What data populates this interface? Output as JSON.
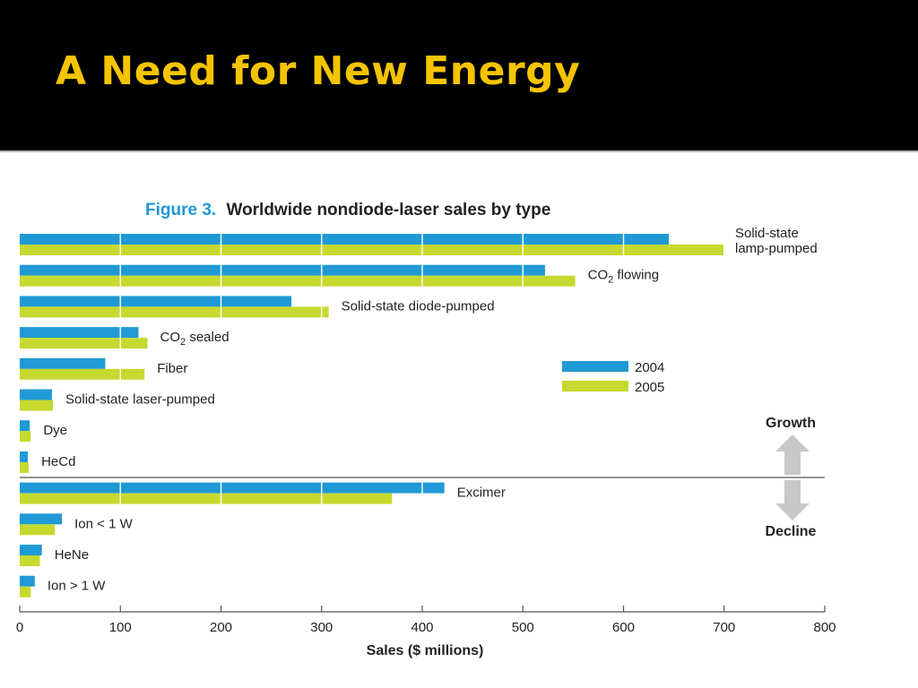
{
  "slide": {
    "title": "A Need for New Energy"
  },
  "colors": {
    "title": "#f5c400",
    "background": "#000000",
    "series_2004": "#1f9ad6",
    "series_2005": "#c6d92e",
    "arrow": "#c8c8c8"
  },
  "chart_data": {
    "type": "bar",
    "orientation": "horizontal",
    "title_prefix": "Figure 3.",
    "title": "Worldwide nondiode-laser sales by type",
    "xlabel": "Sales ($ millions)",
    "ylabel": "",
    "xlim": [
      0,
      800
    ],
    "xticks": [
      "0",
      "100",
      "200",
      "300",
      "400",
      "500",
      "600",
      "700",
      "800"
    ],
    "grid": "vertical gridlines (white) over bars",
    "legend_position": "right-middle",
    "categories": [
      {
        "label": "Solid-state lamp-pumped",
        "lines": [
          "Solid-state",
          "lamp-pumped"
        ],
        "group": "growth"
      },
      {
        "label": "CO2 flowing",
        "base": "CO",
        "sub": "2",
        "rest": " flowing",
        "group": "growth"
      },
      {
        "label": "Solid-state diode-pumped",
        "group": "growth"
      },
      {
        "label": "CO2 sealed",
        "base": "CO",
        "sub": "2",
        "rest": " sealed",
        "group": "growth"
      },
      {
        "label": "Fiber",
        "group": "growth"
      },
      {
        "label": "Solid-state laser-pumped",
        "group": "growth"
      },
      {
        "label": "Dye",
        "group": "growth"
      },
      {
        "label": "HeCd",
        "group": "growth"
      },
      {
        "label": "Excimer",
        "group": "decline"
      },
      {
        "label": "Ion < 1 W",
        "group": "decline"
      },
      {
        "label": "HeNe",
        "group": "decline"
      },
      {
        "label": "Ion > 1 W",
        "group": "decline"
      }
    ],
    "series": [
      {
        "name": "2004",
        "color": "#1f9ad6",
        "values": [
          645,
          522,
          270,
          118,
          85,
          32,
          10,
          8,
          422,
          42,
          22,
          15
        ]
      },
      {
        "name": "2005",
        "color": "#c6d92e",
        "values": [
          700,
          552,
          307,
          127,
          124,
          33,
          11,
          9,
          370,
          35,
          20,
          11
        ]
      }
    ],
    "annotations": {
      "growth": "Growth",
      "decline": "Decline"
    }
  }
}
